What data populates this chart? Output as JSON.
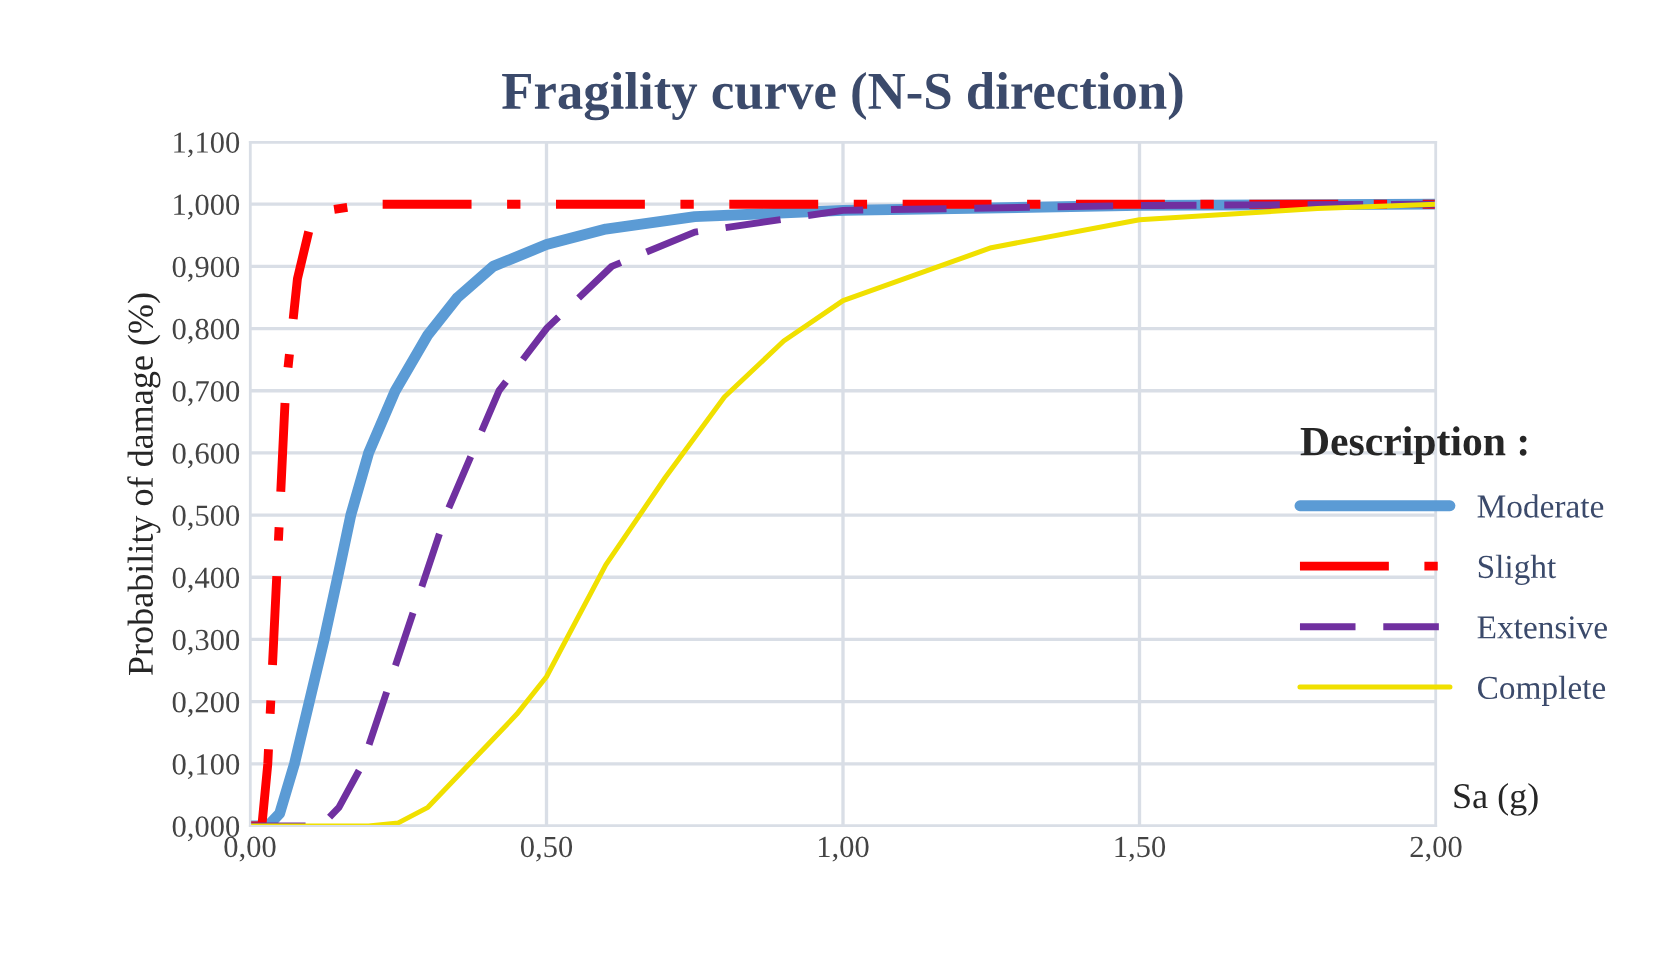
{
  "chart_data": {
    "type": "line",
    "title": "Fragility curve (N-S direction)",
    "xlabel": "Sa (g)",
    "ylabel": "Probability of damage (%)",
    "legend_title": "Description :",
    "xlim": [
      0,
      2
    ],
    "xticks": [
      {
        "value": 0,
        "label": "0,00"
      },
      {
        "value": 0.5,
        "label": "0,50"
      },
      {
        "value": 1,
        "label": "1,00"
      },
      {
        "value": 1.5,
        "label": "1,50"
      },
      {
        "value": 2,
        "label": "2,00"
      }
    ],
    "ylim": [
      0,
      1.1
    ],
    "yticks": [
      {
        "value": 0,
        "label": "0,000"
      },
      {
        "value": 0.1,
        "label": "0,100"
      },
      {
        "value": 0.2,
        "label": "0,200"
      },
      {
        "value": 0.3,
        "label": "0,300"
      },
      {
        "value": 0.4,
        "label": "0,400"
      },
      {
        "value": 0.5,
        "label": "0,500"
      },
      {
        "value": 0.6,
        "label": "0,600"
      },
      {
        "value": 0.7,
        "label": "0,700"
      },
      {
        "value": 0.8,
        "label": "0,800"
      },
      {
        "value": 0.9,
        "label": "0,900"
      },
      {
        "value": 1,
        "label": "1,000"
      },
      {
        "value": 1.1,
        "label": "1,100"
      }
    ],
    "grid": true,
    "legend": "right",
    "marker": "none",
    "series": [
      {
        "name": "Moderate",
        "color": "#5b9bd5",
        "line_style": "solid",
        "x": [
          0,
          0.03,
          0.05,
          0.075,
          0.1,
          0.125,
          0.15,
          0.17,
          0.2,
          0.245,
          0.3,
          0.35,
          0.41,
          0.5,
          0.6,
          0.75,
          1.0,
          1.5,
          2.0
        ],
        "values": [
          0,
          0,
          0.02,
          0.1,
          0.2,
          0.3,
          0.41,
          0.5,
          0.6,
          0.7,
          0.79,
          0.85,
          0.9,
          0.935,
          0.96,
          0.98,
          0.99,
          0.998,
          1.0
        ]
      },
      {
        "name": "Slight",
        "color": "#ff0000",
        "line_style": "dashdot",
        "x": [
          0,
          0.02,
          0.03,
          0.04,
          0.05,
          0.06,
          0.08,
          0.1,
          0.13,
          0.2,
          0.5,
          1.0,
          2.0
        ],
        "values": [
          0,
          0,
          0.1,
          0.3,
          0.5,
          0.7,
          0.88,
          0.96,
          0.99,
          1.0,
          1.0,
          1.0,
          1.0
        ]
      },
      {
        "name": "Extensive",
        "color": "#7030a0",
        "line_style": "dashed",
        "x": [
          0,
          0.12,
          0.15,
          0.19,
          0.26,
          0.33,
          0.42,
          0.5,
          0.61,
          0.75,
          1.0,
          1.5,
          2.0
        ],
        "values": [
          0,
          0,
          0.03,
          0.1,
          0.3,
          0.5,
          0.7,
          0.8,
          0.9,
          0.955,
          0.99,
          0.998,
          1.0
        ]
      },
      {
        "name": "Complete",
        "color": "#f0e000",
        "line_style": "solid",
        "x": [
          0,
          0.2,
          0.25,
          0.3,
          0.35,
          0.4,
          0.45,
          0.5,
          0.6,
          0.7,
          0.8,
          0.9,
          1.0,
          1.25,
          1.5,
          1.8,
          2.0
        ],
        "values": [
          0,
          0,
          0.005,
          0.03,
          0.08,
          0.13,
          0.18,
          0.24,
          0.42,
          0.56,
          0.69,
          0.78,
          0.845,
          0.93,
          0.975,
          0.993,
          1.0
        ]
      }
    ]
  }
}
